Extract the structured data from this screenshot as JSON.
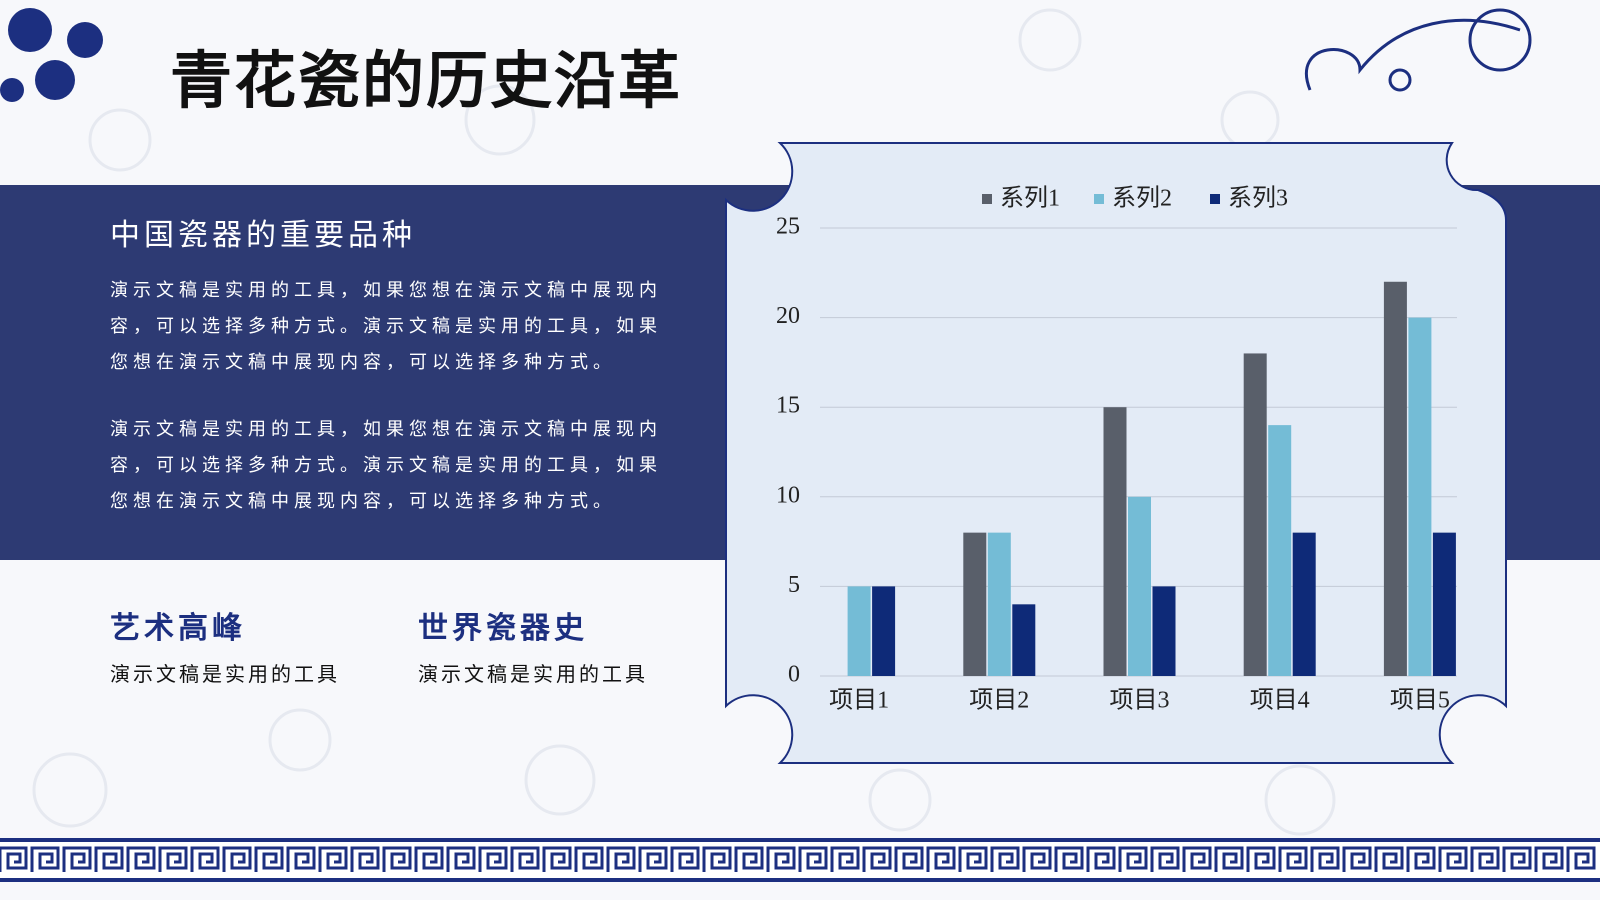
{
  "header": {
    "title": "青花瓷的历史沿革"
  },
  "intro": {
    "heading": "中国瓷器的重要品种",
    "paragraphs": [
      "演示文稿是实用的工具，如果您想在演示文稿中展现内容，可以选择多种方式。演示文稿是实用的工具，如果您想在演示文稿中展现内容，可以选择多种方式。",
      "演示文稿是实用的工具，如果您想在演示文稿中展现内容，可以选择多种方式。演示文稿是实用的工具，如果您想在演示文稿中展现内容，可以选择多种方式。"
    ]
  },
  "features": [
    {
      "heading": "艺术高峰",
      "text": "演示文稿是实用的工具"
    },
    {
      "heading": "世界瓷器史",
      "text": "演示文稿是实用的工具"
    }
  ],
  "chart_data": {
    "type": "bar",
    "categories": [
      "项目1",
      "项目2",
      "项目3",
      "项目4",
      "项目5"
    ],
    "series": [
      {
        "name": "系列1",
        "color": "#595f6a",
        "values": [
          0,
          8,
          15,
          18,
          22
        ]
      },
      {
        "name": "系列2",
        "color": "#74bcd6",
        "values": [
          5,
          8,
          10,
          14,
          20
        ]
      },
      {
        "name": "系列3",
        "color": "#0e2a78",
        "values": [
          5,
          4,
          5,
          8,
          8
        ]
      }
    ],
    "ylim": [
      0,
      25
    ],
    "yticks": [
      0,
      5,
      10,
      15,
      20,
      25
    ],
    "grid": true,
    "legend": "top"
  }
}
